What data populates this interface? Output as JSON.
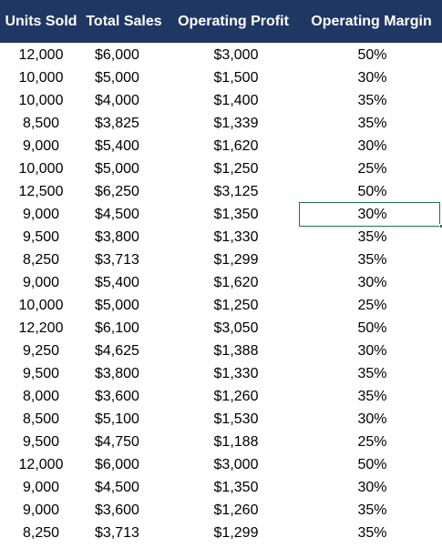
{
  "headers": {
    "units_sold": "Units Sold",
    "total_sales": "Total Sales",
    "operating_profit": "Operating Profit",
    "operating_margin": "Operating Margin"
  },
  "header_color": "#203764",
  "selection_color": "#217346",
  "selected_row_index": 7,
  "rows": [
    {
      "units": "12,000",
      "sales": "$6,000",
      "profit": "$3,000",
      "margin": "50%"
    },
    {
      "units": "10,000",
      "sales": "$5,000",
      "profit": "$1,500",
      "margin": "30%"
    },
    {
      "units": "10,000",
      "sales": "$4,000",
      "profit": "$1,400",
      "margin": "35%"
    },
    {
      "units": "8,500",
      "sales": "$3,825",
      "profit": "$1,339",
      "margin": "35%"
    },
    {
      "units": "9,000",
      "sales": "$5,400",
      "profit": "$1,620",
      "margin": "30%"
    },
    {
      "units": "10,000",
      "sales": "$5,000",
      "profit": "$1,250",
      "margin": "25%"
    },
    {
      "units": "12,500",
      "sales": "$6,250",
      "profit": "$3,125",
      "margin": "50%"
    },
    {
      "units": "9,000",
      "sales": "$4,500",
      "profit": "$1,350",
      "margin": "30%"
    },
    {
      "units": "9,500",
      "sales": "$3,800",
      "profit": "$1,330",
      "margin": "35%"
    },
    {
      "units": "8,250",
      "sales": "$3,713",
      "profit": "$1,299",
      "margin": "35%"
    },
    {
      "units": "9,000",
      "sales": "$5,400",
      "profit": "$1,620",
      "margin": "30%"
    },
    {
      "units": "10,000",
      "sales": "$5,000",
      "profit": "$1,250",
      "margin": "25%"
    },
    {
      "units": "12,200",
      "sales": "$6,100",
      "profit": "$3,050",
      "margin": "50%"
    },
    {
      "units": "9,250",
      "sales": "$4,625",
      "profit": "$1,388",
      "margin": "30%"
    },
    {
      "units": "9,500",
      "sales": "$3,800",
      "profit": "$1,330",
      "margin": "35%"
    },
    {
      "units": "8,000",
      "sales": "$3,600",
      "profit": "$1,260",
      "margin": "35%"
    },
    {
      "units": "8,500",
      "sales": "$5,100",
      "profit": "$1,530",
      "margin": "30%"
    },
    {
      "units": "9,500",
      "sales": "$4,750",
      "profit": "$1,188",
      "margin": "25%"
    },
    {
      "units": "12,000",
      "sales": "$6,000",
      "profit": "$3,000",
      "margin": "50%"
    },
    {
      "units": "9,000",
      "sales": "$4,500",
      "profit": "$1,350",
      "margin": "30%"
    },
    {
      "units": "9,000",
      "sales": "$3,600",
      "profit": "$1,260",
      "margin": "35%"
    },
    {
      "units": "8,250",
      "sales": "$3,713",
      "profit": "$1,299",
      "margin": "35%"
    }
  ]
}
